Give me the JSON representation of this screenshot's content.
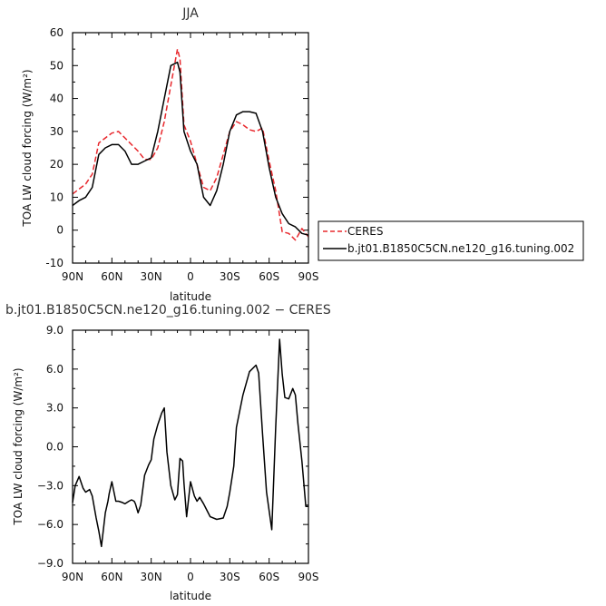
{
  "chart_data": [
    {
      "type": "line",
      "title": "JJA",
      "xlabel": "latitude",
      "ylabel": "TOA LW cloud forcing (W/m²)",
      "xlim": [
        90,
        -90
      ],
      "ylim": [
        -10,
        60
      ],
      "x_ticks": [
        90,
        60,
        30,
        0,
        -30,
        -60,
        -90
      ],
      "x_tick_labels": [
        "90N",
        "60N",
        "30N",
        "0",
        "30S",
        "60S",
        "90S"
      ],
      "y_ticks": [
        -10,
        0,
        10,
        20,
        30,
        40,
        50,
        60
      ],
      "y_tick_labels": [
        "-10",
        "0",
        "10",
        "20",
        "30",
        "40",
        "50",
        "60"
      ],
      "legend_position": "right",
      "series": [
        {
          "name": "CERES",
          "color": "#e8282d",
          "dash": "dashed",
          "x": [
            90,
            85,
            80,
            75,
            70,
            65,
            60,
            55,
            50,
            45,
            40,
            35,
            30,
            25,
            20,
            15,
            10,
            8,
            5,
            0,
            -5,
            -10,
            -15,
            -20,
            -25,
            -30,
            -35,
            -40,
            -45,
            -50,
            -55,
            -60,
            -65,
            -70,
            -75,
            -80,
            -85,
            -90
          ],
          "y": [
            11,
            12.5,
            14,
            17,
            26.5,
            28,
            29.5,
            30,
            28,
            26,
            24,
            21.5,
            21.5,
            25,
            33,
            44,
            55,
            52,
            32,
            27,
            20,
            13,
            12,
            16,
            23,
            30,
            33,
            32,
            30.5,
            30,
            31,
            21,
            12,
            -0.5,
            -1,
            -3,
            0.5,
            -2
          ]
        },
        {
          "name": "b.jt01.B1850C5CN.ne120_g16.tuning.002",
          "color": "#000000",
          "dash": "solid",
          "x": [
            90,
            85,
            80,
            75,
            70,
            65,
            60,
            55,
            50,
            45,
            40,
            35,
            30,
            25,
            20,
            15,
            10,
            8,
            5,
            0,
            -5,
            -10,
            -15,
            -20,
            -25,
            -30,
            -35,
            -40,
            -45,
            -50,
            -55,
            -60,
            -65,
            -70,
            -75,
            -80,
            -85,
            -90
          ],
          "y": [
            7.5,
            9,
            10,
            13,
            23,
            25,
            26,
            26,
            24,
            20,
            20,
            21,
            22,
            30,
            40,
            50,
            51,
            48,
            30,
            24,
            20,
            10,
            7.5,
            12,
            20,
            30,
            35,
            36,
            36,
            35.5,
            30,
            19,
            10,
            5,
            2,
            1,
            -1,
            -1.5
          ]
        }
      ]
    },
    {
      "type": "line",
      "title": "b.jt01.B1850C5CN.ne120_g16.tuning.002 − CERES",
      "xlabel": "latitude",
      "ylabel": "TOA LW cloud forcing (W/m²)",
      "xlim": [
        90,
        -90
      ],
      "ylim": [
        -9,
        9
      ],
      "x_ticks": [
        90,
        60,
        30,
        0,
        -30,
        -60,
        -90
      ],
      "x_tick_labels": [
        "90N",
        "60N",
        "30N",
        "0",
        "30S",
        "60S",
        "90S"
      ],
      "y_ticks": [
        -9,
        -6,
        -3,
        0,
        3,
        6,
        9
      ],
      "y_tick_labels": [
        "−9.0",
        "−6.0",
        "−3.0",
        "0.0",
        "3.0",
        "6.0",
        "9.0"
      ],
      "series": [
        {
          "color": "#000000",
          "x": [
            90,
            88,
            85,
            82,
            80,
            77,
            75,
            72,
            70,
            68,
            65,
            63,
            62,
            60,
            57,
            55,
            52,
            50,
            47,
            45,
            43,
            42,
            40,
            38,
            35,
            32,
            30,
            28,
            25,
            22,
            20,
            18,
            15,
            12,
            10,
            8,
            6,
            5,
            3,
            0,
            -3,
            -5,
            -7,
            -10,
            -12,
            -15,
            -20,
            -25,
            -28,
            -30,
            -33,
            -35,
            -40,
            -45,
            -50,
            -52,
            -55,
            -58,
            -62,
            -65,
            -68,
            -70,
            -72,
            -75,
            -78,
            -80,
            -82,
            -85,
            -88,
            -90
          ],
          "y": [
            -4.3,
            -3,
            -2.3,
            -3.2,
            -3.5,
            -3.3,
            -3.8,
            -5.5,
            -6.5,
            -7.7,
            -5.1,
            -4.2,
            -3.6,
            -2.7,
            -4.2,
            -4.2,
            -4.3,
            -4.4,
            -4.2,
            -4.1,
            -4.2,
            -4.4,
            -5.1,
            -4.5,
            -2.2,
            -1.4,
            -1,
            0.6,
            1.7,
            2.6,
            3,
            -0.4,
            -3,
            -4.1,
            -3.7,
            -0.9,
            -1.1,
            -2.8,
            -5.4,
            -2.7,
            -3.8,
            -4.2,
            -3.9,
            -4.4,
            -4.8,
            -5.4,
            -5.6,
            -5.5,
            -4.6,
            -3.5,
            -1.5,
            1.5,
            4,
            5.8,
            6.3,
            5.7,
            1,
            -3.5,
            -6.4,
            1.5,
            8.3,
            5.6,
            3.8,
            3.7,
            4.5,
            4,
            1.8,
            -1.1,
            -4.6,
            -4.6
          ]
        }
      ]
    }
  ]
}
